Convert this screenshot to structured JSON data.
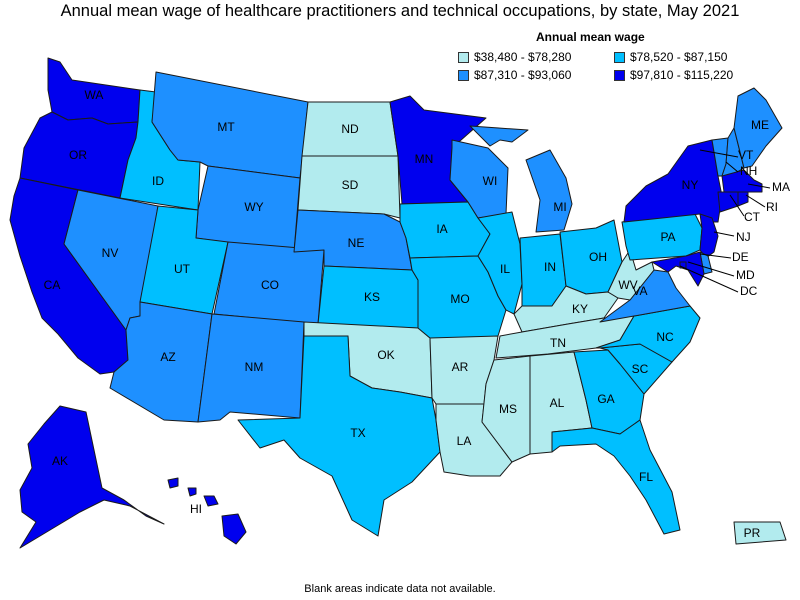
{
  "title": "Annual mean wage of healthcare practitioners and technical occupations, by state, May 2021",
  "footer": "Blank areas indicate data not available.",
  "legend": {
    "title": "Annual mean wage",
    "classes": [
      {
        "label": "$38,480 - $78,280",
        "color": "#b2ebee"
      },
      {
        "label": "$78,520 - $87,150",
        "color": "#00bfff"
      },
      {
        "label": "$87,310 - $93,060",
        "color": "#1e90ff"
      },
      {
        "label": "$97,810 - $115,220",
        "color": "#0000ee"
      }
    ]
  },
  "states": {
    "WA": 3,
    "OR": 3,
    "CA": 3,
    "AK": 3,
    "NV": 2,
    "ID": 1,
    "MT": 2,
    "WY": 2,
    "UT": 1,
    "AZ": 2,
    "CO": 2,
    "NM": 2,
    "ND": 0,
    "SD": 0,
    "NE": 2,
    "KS": 1,
    "OK": 0,
    "TX": 1,
    "MN": 3,
    "IA": 1,
    "MO": 1,
    "AR": 0,
    "LA": 0,
    "WI": 2,
    "IL": 1,
    "MI": 2,
    "IN": 1,
    "OH": 1,
    "KY": 0,
    "TN": 0,
    "MS": 0,
    "AL": 0,
    "GA": 1,
    "FL": 1,
    "SC": 1,
    "NC": 1,
    "VA": 2,
    "WV": 0,
    "PA": 1,
    "NY": 3,
    "VT": 2,
    "NH": 2,
    "ME": 2,
    "MA": 3,
    "CT": 3,
    "RI": 3,
    "NJ": 3,
    "DE": 2,
    "MD": 3,
    "DC": 3,
    "HI": 3,
    "PR": 0
  }
}
